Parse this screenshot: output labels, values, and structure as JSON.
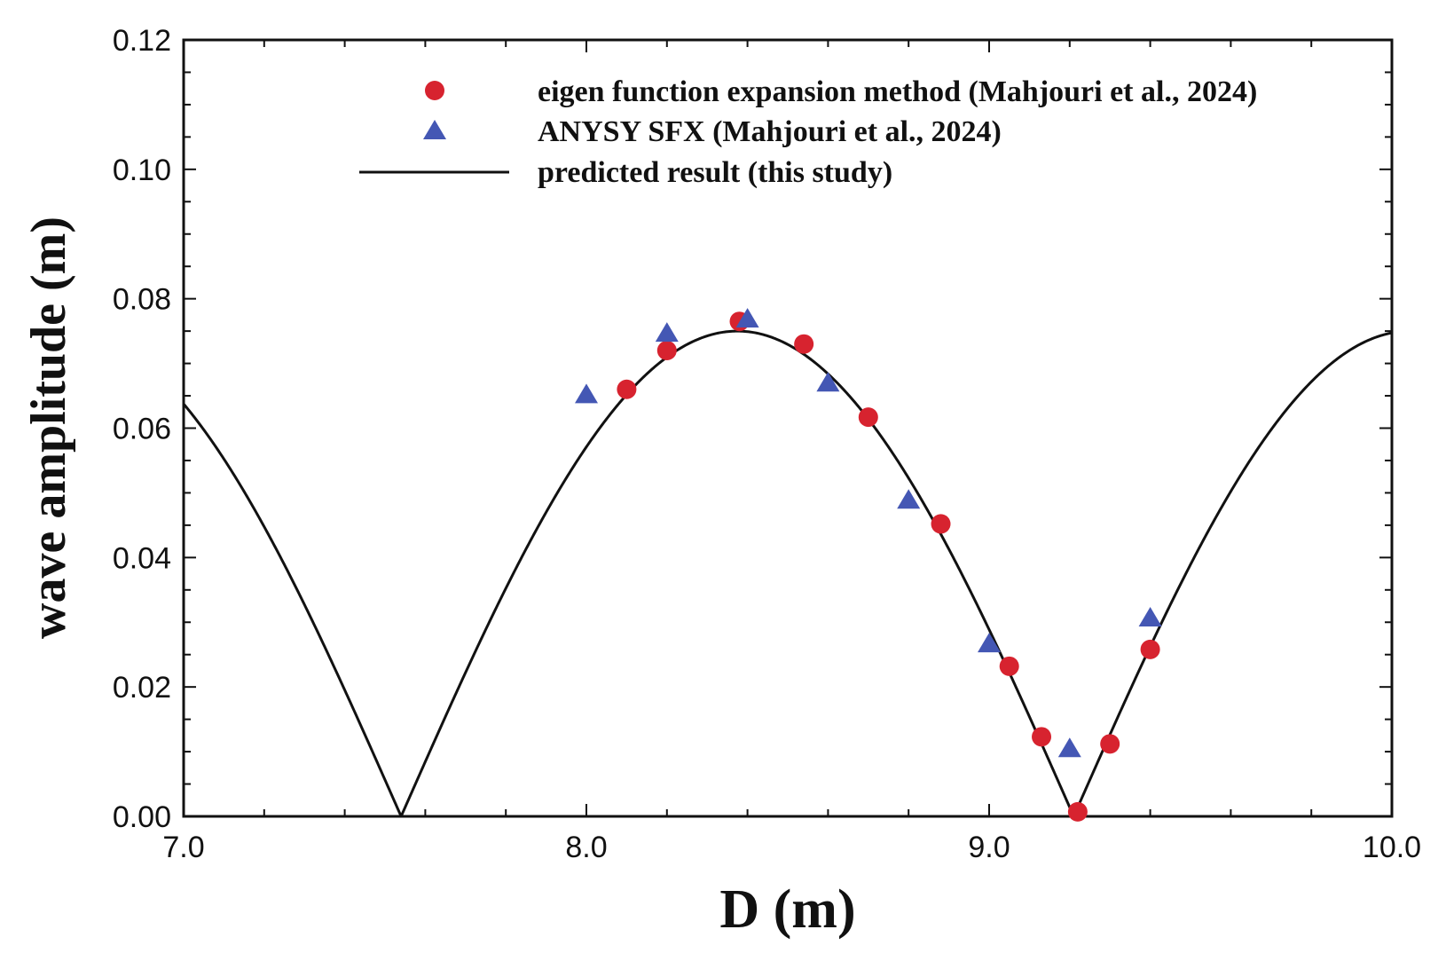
{
  "chart_data": {
    "type": "line",
    "title": "",
    "xlabel": "D (m)",
    "ylabel": "wave amplitude (m)",
    "xlim": [
      7.0,
      10.0
    ],
    "ylim": [
      0.0,
      0.12
    ],
    "x_ticks": [
      7.0,
      8.0,
      9.0,
      10.0
    ],
    "x_tick_labels": [
      "7.0",
      "8.0",
      "9.0",
      "10.0"
    ],
    "y_ticks": [
      0.0,
      0.02,
      0.04,
      0.06,
      0.08,
      0.1,
      0.12
    ],
    "y_tick_labels": [
      "0.00",
      "0.02",
      "0.04",
      "0.06",
      "0.08",
      "0.10",
      "0.12"
    ],
    "grid": false,
    "legend_position": "top-right",
    "series": [
      {
        "name": "eigen function expansion method (Mahjouri et al., 2024)",
        "kind": "scatter",
        "marker": "circle",
        "color": "#d7232f",
        "x": [
          8.1,
          8.2,
          8.38,
          8.54,
          8.7,
          8.88,
          9.05,
          9.13,
          9.22,
          9.3,
          9.4
        ],
        "y": [
          0.066,
          0.072,
          0.0765,
          0.073,
          0.0617,
          0.0452,
          0.0232,
          0.0123,
          0.0007,
          0.0112,
          0.0258
        ]
      },
      {
        "name": "ANYSY SFX (Mahjouri et al., 2024)",
        "kind": "scatter",
        "marker": "triangle",
        "color": "#4457b4",
        "x": [
          8.0,
          8.2,
          8.4,
          8.6,
          8.8,
          9.0,
          9.2,
          9.4
        ],
        "y": [
          0.065,
          0.0745,
          0.0767,
          0.0668,
          0.0487,
          0.0265,
          0.0103,
          0.0305
        ]
      },
      {
        "name": "predicted result (this study)",
        "kind": "line",
        "color": "#111111",
        "amplitude": 0.075,
        "zeros": [
          7.54,
          9.21
        ],
        "x": [
          7.0,
          7.54,
          8.375,
          9.21,
          10.0
        ],
        "y": [
          0.0636,
          0.0,
          0.075,
          0.0,
          0.0748
        ]
      }
    ]
  }
}
